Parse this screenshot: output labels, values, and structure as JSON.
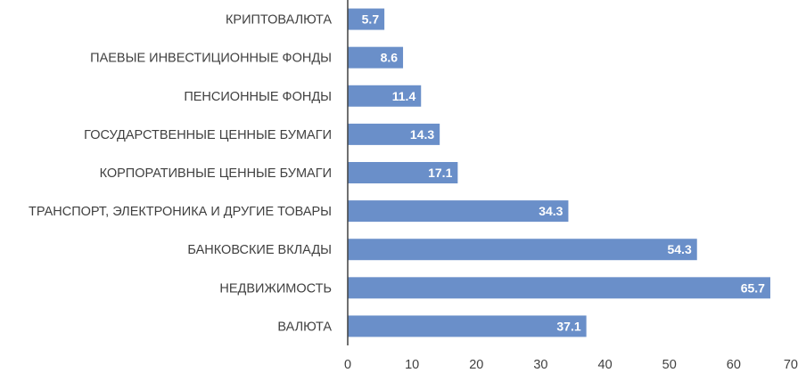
{
  "chart_data": {
    "type": "bar",
    "orientation": "horizontal",
    "categories": [
      "КРИПТОВАЛЮТА",
      "ПАЕВЫЕ ИНВЕСТИЦИОННЫЕ ФОНДЫ",
      "ПЕНСИОННЫЕ ФОНДЫ",
      "ГОСУДАРСТВЕННЫЕ ЦЕННЫЕ БУМАГИ",
      "КОРПОРАТИВНЫЕ ЦЕННЫЕ БУМАГИ",
      "ТРАНСПОРТ, ЭЛЕКТРОНИКА И ДРУГИЕ ТОВАРЫ",
      "БАНКОВСКИЕ ВКЛАДЫ",
      "НЕДВИЖИМОСТЬ",
      "ВАЛЮТА"
    ],
    "values": [
      5.7,
      8.6,
      11.4,
      14.3,
      17.1,
      34.3,
      54.3,
      65.7,
      37.1
    ],
    "data_labels": [
      "5.7",
      "8.6",
      "11.4",
      "14.3",
      "17.1",
      "34.3",
      "54.3",
      "65.7",
      "37.1"
    ],
    "title": "",
    "xlabel": "",
    "ylabel": "",
    "xlim": [
      0,
      70
    ],
    "xticks": [
      0,
      10,
      20,
      30,
      40,
      50,
      60,
      70
    ],
    "xtick_labels": [
      "0",
      "10",
      "20",
      "30",
      "40",
      "50",
      "60",
      "70"
    ],
    "grid": false,
    "legend": "none",
    "bar_color": "#6a8fc9",
    "axis_color": "#404040"
  }
}
